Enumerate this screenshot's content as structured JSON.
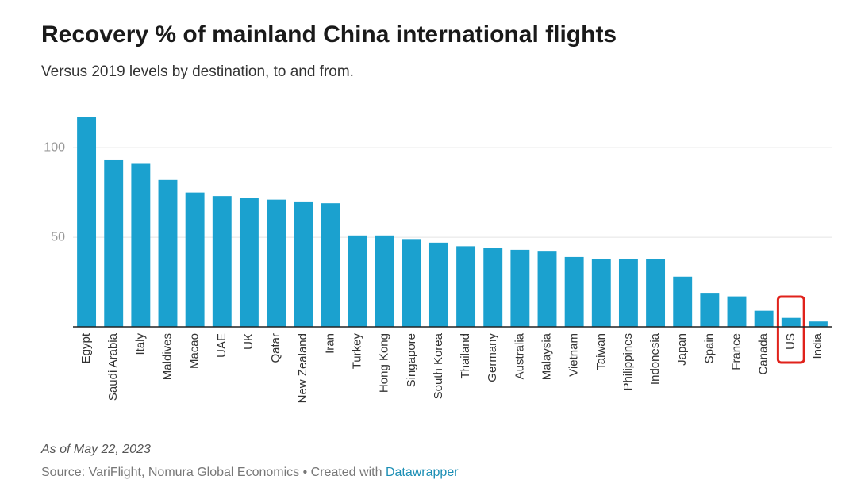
{
  "chart_data": {
    "type": "bar",
    "title": "Recovery % of mainland China international flights",
    "subtitle": "Versus 2019 levels by destination, to and from.",
    "categories": [
      "Egypt",
      "Saudi Arabia",
      "Italy",
      "Maldives",
      "Macao",
      "UAE",
      "UK",
      "Qatar",
      "New Zealand",
      "Iran",
      "Turkey",
      "Hong Kong",
      "Singapore",
      "South Korea",
      "Thailand",
      "Germany",
      "Australia",
      "Malaysia",
      "Vietnam",
      "Taiwan",
      "Philippines",
      "Indonesia",
      "Japan",
      "Spain",
      "France",
      "Canada",
      "US",
      "India"
    ],
    "values": [
      117,
      93,
      91,
      82,
      75,
      73,
      72,
      71,
      70,
      69,
      51,
      51,
      49,
      47,
      45,
      44,
      43,
      42,
      39,
      38,
      38,
      38,
      28,
      19,
      17,
      9,
      5,
      3
    ],
    "color": "#1ba1cf",
    "ylim": [
      0,
      120
    ],
    "yticks": [
      50,
      100
    ],
    "grid": true,
    "highlight": "US",
    "highlight_color": "#e0221b",
    "note": "As of May 22, 2023",
    "source": "Source: VariFlight, Nomura Global Economics • Created with",
    "credit": "Datawrapper"
  }
}
